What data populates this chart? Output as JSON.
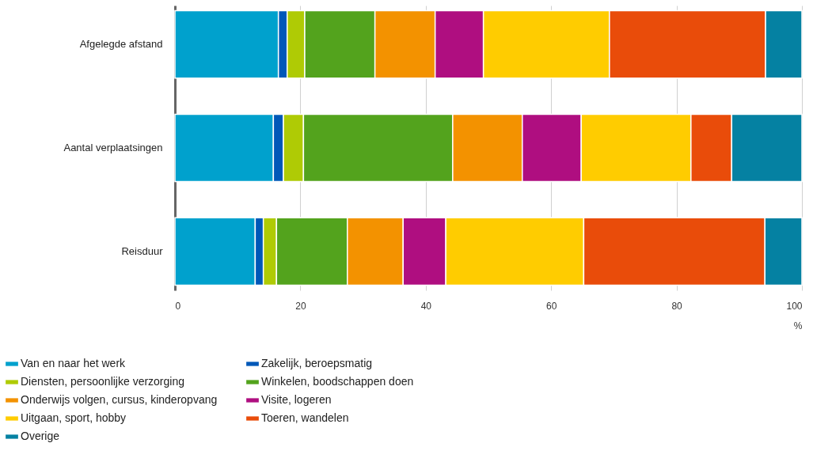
{
  "chart_data": {
    "type": "bar",
    "orientation": "horizontal",
    "stacked": true,
    "categories": [
      "Afgelegde afstand",
      "Aantal verplaatsingen",
      "Reisduur"
    ],
    "series": [
      {
        "name": "Van en naar het werk",
        "color": "#00a1cd",
        "values": [
          16.5,
          15.7,
          12.8
        ]
      },
      {
        "name": "Zakelijk, beroepsmatig",
        "color": "#0058b8",
        "values": [
          1.4,
          1.6,
          1.3
        ]
      },
      {
        "name": "Diensten, persoonlijke verzorging",
        "color": "#afcb05",
        "values": [
          2.8,
          3.2,
          2.1
        ]
      },
      {
        "name": "Winkelen, boodschappen doen",
        "color": "#53a31d",
        "values": [
          11.2,
          23.8,
          11.3
        ]
      },
      {
        "name": "Onderwijs volgen, cursus, kinderopvang",
        "color": "#f39200",
        "values": [
          9.6,
          11.1,
          8.9
        ]
      },
      {
        "name": "Visite, logeren",
        "color": "#af0e80",
        "values": [
          7.7,
          9.4,
          6.8
        ]
      },
      {
        "name": "Uitgaan, sport, hobby",
        "color": "#ffcc00",
        "values": [
          20.1,
          17.5,
          22.0
        ]
      },
      {
        "name": "Toeren, wandelen",
        "color": "#e94c0a",
        "values": [
          24.9,
          6.5,
          28.9
        ]
      },
      {
        "name": "Overige",
        "color": "#0581a2",
        "values": [
          5.8,
          11.2,
          5.9
        ]
      }
    ],
    "xlim": [
      0,
      100
    ],
    "xticks": [
      0,
      20,
      40,
      60,
      80,
      100
    ],
    "xlabel": "%",
    "grid": "x",
    "legend": "bottom"
  }
}
